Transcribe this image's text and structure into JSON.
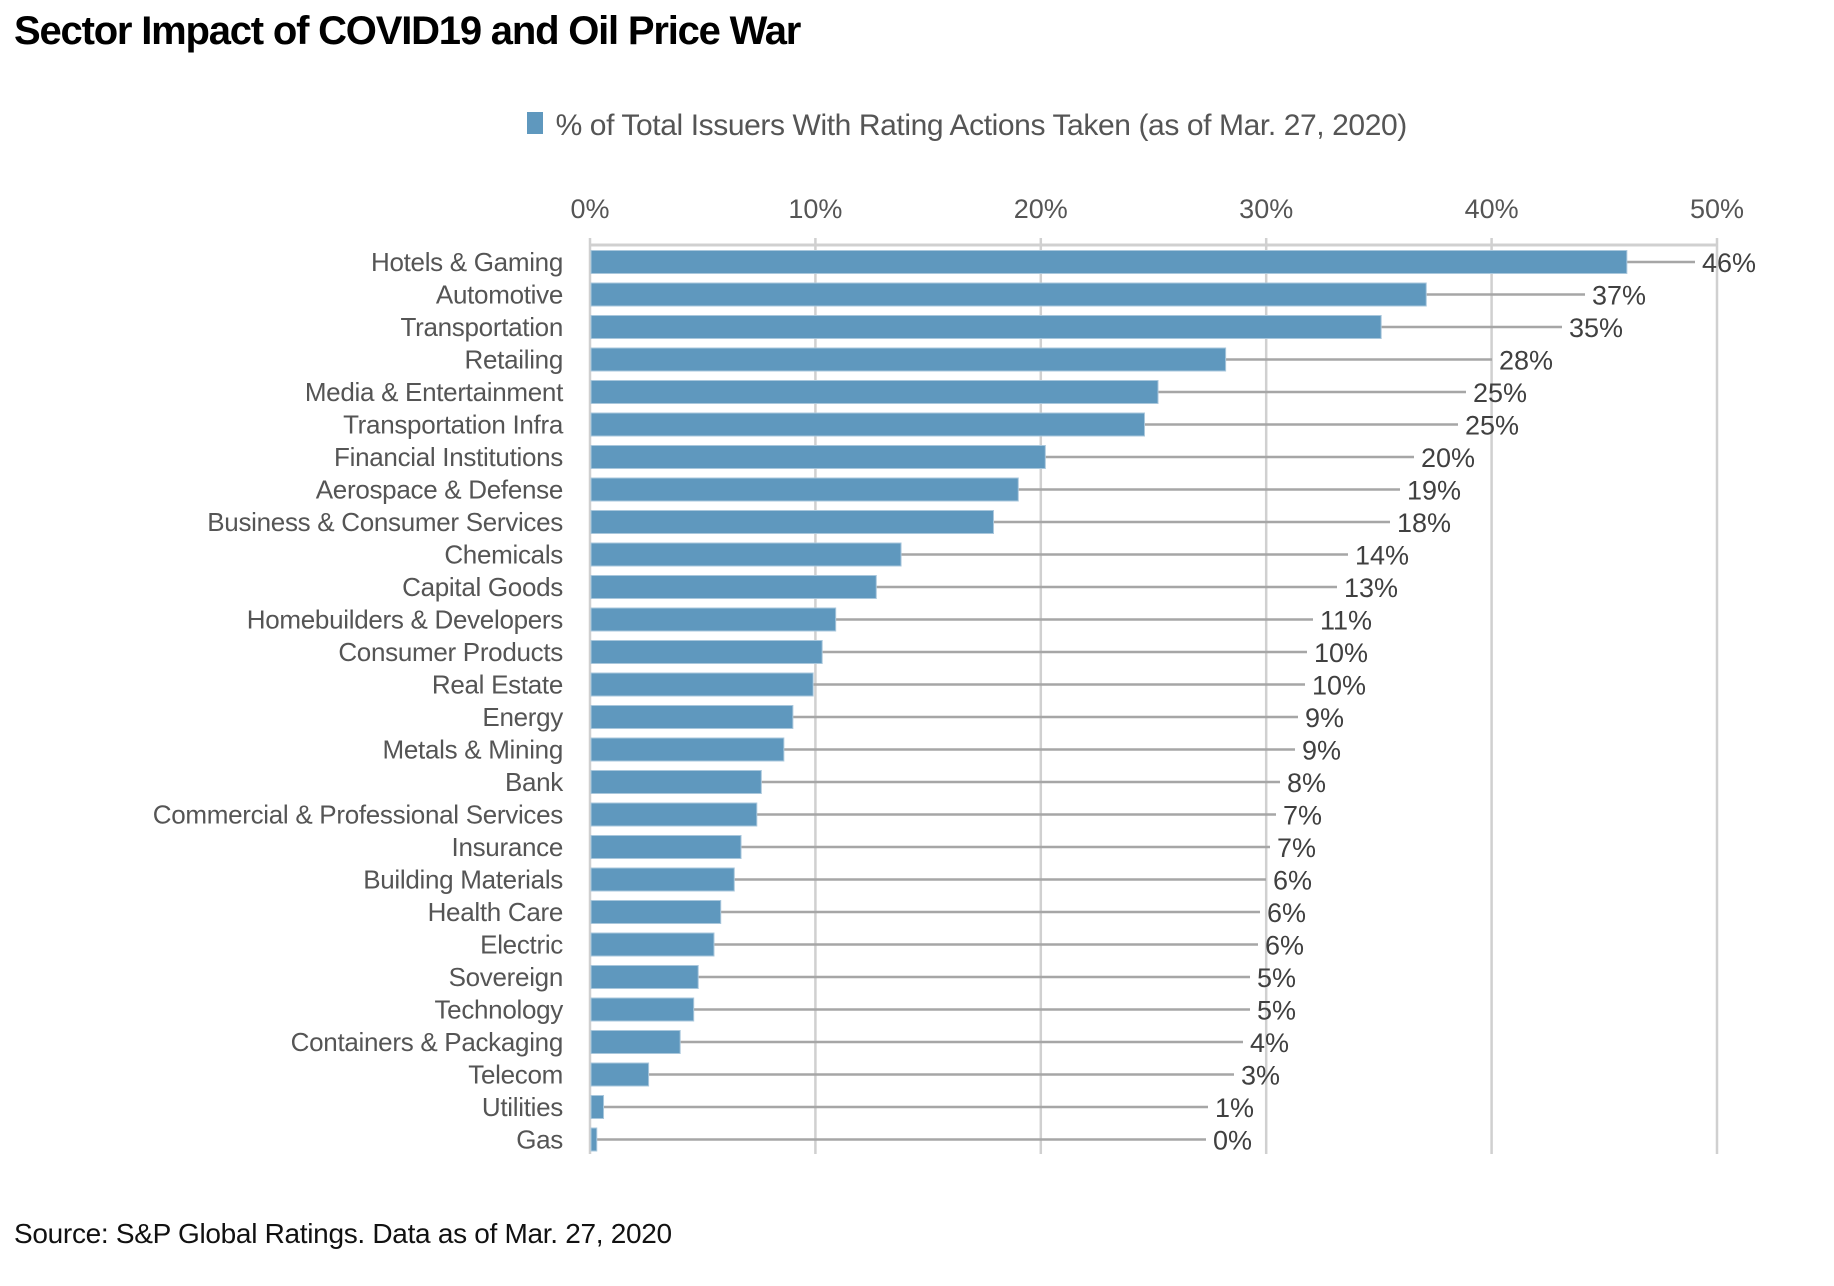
{
  "chart_data": {
    "type": "bar",
    "orientation": "horizontal",
    "title": "Sector Impact of COVID19 and Oil Price War",
    "xlabel": "",
    "ylabel": "",
    "xlim": [
      0,
      50
    ],
    "x_ticks": [
      0,
      10,
      20,
      30,
      40,
      50
    ],
    "x_tick_labels": [
      "0%",
      "10%",
      "20%",
      "30%",
      "40%",
      "50%"
    ],
    "x_axis_position": "top",
    "grid": true,
    "legend": {
      "position": "top-center",
      "entries": [
        "% of Total Issuers With Rating Actions Taken (as of Mar. 27, 2020)"
      ]
    },
    "series": [
      {
        "name": "% of Total Issuers With Rating Actions Taken (as of Mar. 27, 2020)",
        "color": "#5f98be",
        "values": [
          46.0,
          37.1,
          35.1,
          28.2,
          25.2,
          24.6,
          20.2,
          19.0,
          17.9,
          13.8,
          12.7,
          10.9,
          10.3,
          9.9,
          9.0,
          8.6,
          7.6,
          7.4,
          6.7,
          6.4,
          5.8,
          5.5,
          4.8,
          4.6,
          4.0,
          2.6,
          0.6,
          0.3
        ],
        "data_labels": [
          "46%",
          "37%",
          "35%",
          "28%",
          "25%",
          "25%",
          "20%",
          "19%",
          "18%",
          "14%",
          "13%",
          "11%",
          "10%",
          "10%",
          "9%",
          "9%",
          "8%",
          "7%",
          "7%",
          "6%",
          "6%",
          "6%",
          "5%",
          "5%",
          "4%",
          "3%",
          "1%",
          "0%"
        ]
      }
    ],
    "categories": [
      "Hotels & Gaming",
      "Automotive",
      "Transportation",
      "Retailing",
      "Media & Entertainment",
      "Transportation Infra",
      "Financial Institutions",
      "Aerospace & Defense",
      "Business & Consumer Services",
      "Chemicals",
      "Capital Goods",
      "Homebuilders & Developers",
      "Consumer Products",
      "Real Estate",
      "Energy",
      "Metals & Mining",
      "Bank",
      "Commercial & Professional Services",
      "Insurance",
      "Building Materials",
      "Health Care",
      "Electric",
      "Sovereign",
      "Technology",
      "Containers & Packaging",
      "Telecom",
      "Utilities",
      "Gas"
    ],
    "source": "Source: S&P Global Ratings. Data as of Mar. 27, 2020"
  },
  "colors": {
    "bar": "#5f98be",
    "leader_line": "#a6a6a6",
    "gridline": "#d0d0d0",
    "label_text": "#555555",
    "value_text": "#404040"
  }
}
